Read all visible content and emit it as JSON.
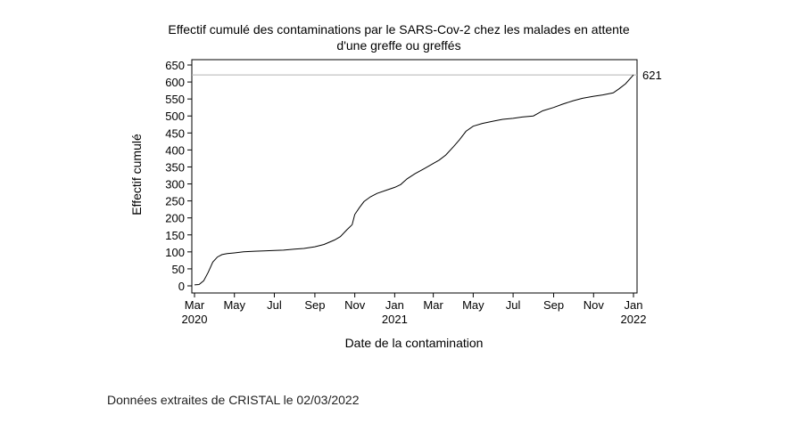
{
  "chart_data": {
    "type": "line",
    "title_line1": "Effectif cumulé des contaminations par le SARS-Cov-2 chez les malades en attente",
    "title_line2": "d'une greffe ou greffés",
    "xlabel": "Date de la contamination",
    "ylabel": "Effectif cumulé",
    "xlim": [
      "2020-03-01",
      "2022-01-01"
    ],
    "ylim": [
      0,
      650
    ],
    "y_ticks": [
      0,
      50,
      100,
      150,
      200,
      250,
      300,
      350,
      400,
      450,
      500,
      550,
      600,
      650
    ],
    "x_ticks": [
      {
        "date": "2020-03-01",
        "label": "Mar",
        "year": "2020"
      },
      {
        "date": "2020-05-01",
        "label": "May",
        "year": ""
      },
      {
        "date": "2020-07-01",
        "label": "Jul",
        "year": ""
      },
      {
        "date": "2020-09-01",
        "label": "Sep",
        "year": ""
      },
      {
        "date": "2020-11-01",
        "label": "Nov",
        "year": ""
      },
      {
        "date": "2021-01-01",
        "label": "Jan",
        "year": "2021"
      },
      {
        "date": "2021-03-01",
        "label": "Mar",
        "year": ""
      },
      {
        "date": "2021-05-01",
        "label": "May",
        "year": ""
      },
      {
        "date": "2021-07-01",
        "label": "Jul",
        "year": ""
      },
      {
        "date": "2021-09-01",
        "label": "Sep",
        "year": ""
      },
      {
        "date": "2021-11-01",
        "label": "Nov",
        "year": ""
      },
      {
        "date": "2022-01-01",
        "label": "Jan",
        "year": "2022"
      }
    ],
    "reference_line": {
      "y": 621,
      "label": "621"
    },
    "grid": false,
    "series": [
      {
        "x": [
          "2020-03-01",
          "2020-03-08",
          "2020-03-15",
          "2020-03-22",
          "2020-03-29",
          "2020-04-05",
          "2020-04-12",
          "2020-04-20",
          "2020-05-01",
          "2020-05-15",
          "2020-06-01",
          "2020-06-15",
          "2020-07-01",
          "2020-07-15",
          "2020-08-01",
          "2020-08-15",
          "2020-09-01",
          "2020-09-15",
          "2020-10-01",
          "2020-10-10",
          "2020-10-20",
          "2020-10-28",
          "2020-11-01",
          "2020-11-08",
          "2020-11-15",
          "2020-11-25",
          "2020-12-05",
          "2020-12-20",
          "2021-01-01",
          "2021-01-10",
          "2021-01-20",
          "2021-02-01",
          "2021-02-15",
          "2021-03-01",
          "2021-03-10",
          "2021-03-20",
          "2021-04-01",
          "2021-04-10",
          "2021-04-20",
          "2021-05-01",
          "2021-05-15",
          "2021-06-01",
          "2021-06-15",
          "2021-07-01",
          "2021-07-15",
          "2021-08-01",
          "2021-08-15",
          "2021-09-01",
          "2021-09-15",
          "2021-10-01",
          "2021-10-15",
          "2021-11-01",
          "2021-11-15",
          "2021-12-01",
          "2021-12-10",
          "2021-12-20",
          "2022-01-01"
        ],
        "values": [
          3,
          4,
          15,
          40,
          70,
          85,
          92,
          95,
          97,
          100,
          102,
          103,
          104,
          105,
          108,
          110,
          115,
          122,
          135,
          145,
          165,
          180,
          210,
          230,
          248,
          262,
          272,
          282,
          290,
          298,
          315,
          330,
          345,
          360,
          370,
          385,
          410,
          430,
          455,
          470,
          478,
          485,
          490,
          493,
          497,
          500,
          515,
          525,
          535,
          545,
          552,
          558,
          562,
          568,
          580,
          595,
          621
        ]
      }
    ]
  },
  "footer": {
    "text": "Données extraites de CRISTAL le 02/03/2022"
  }
}
